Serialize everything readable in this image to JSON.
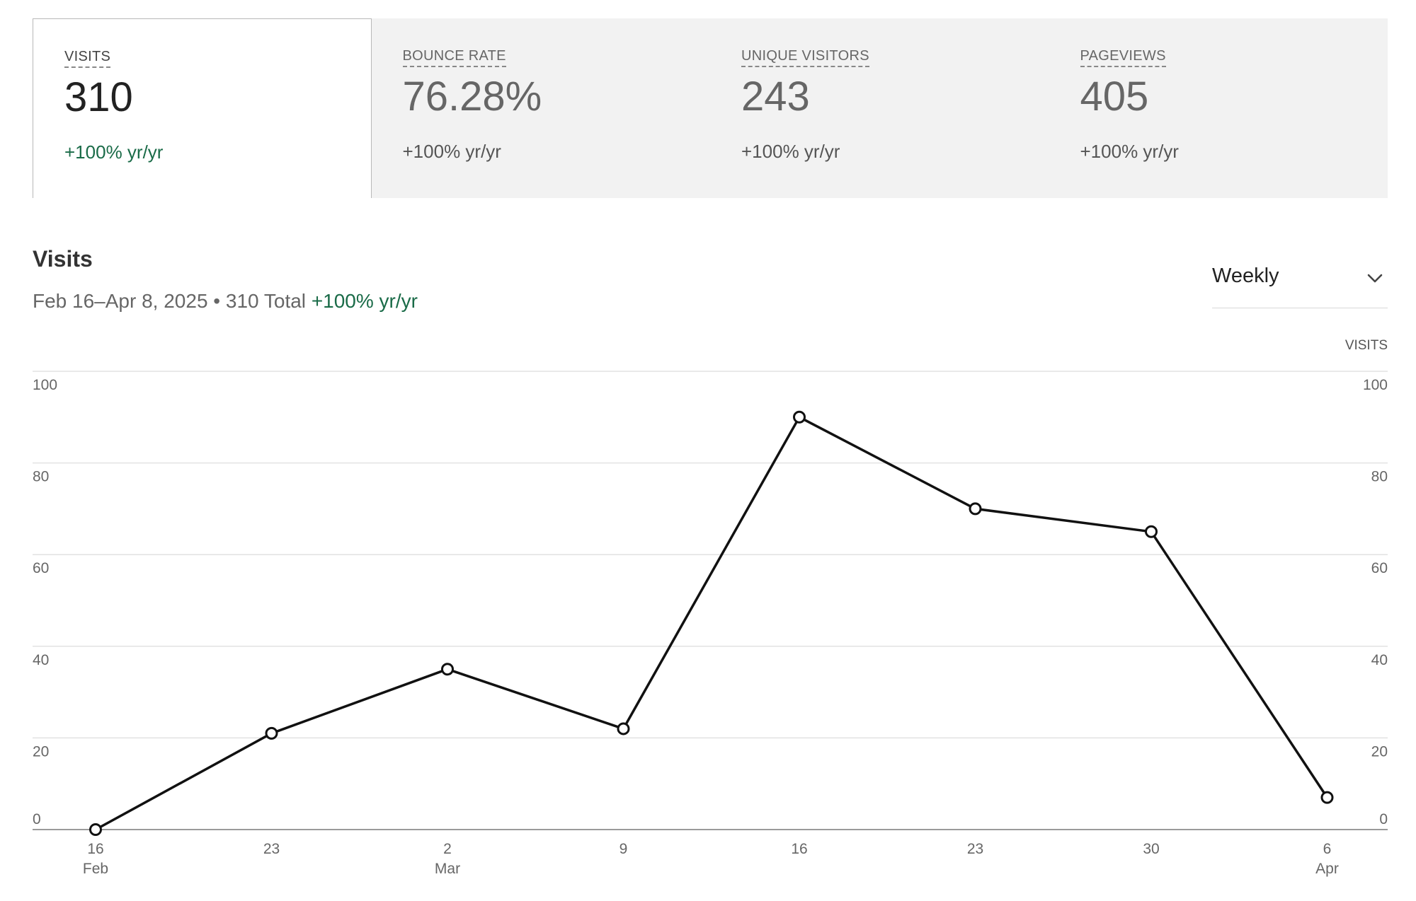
{
  "metrics": [
    {
      "label": "VISITS",
      "value": "310",
      "change": "+100% yr/yr",
      "active": true
    },
    {
      "label": "BOUNCE RATE",
      "value": "76.28%",
      "change": "+100% yr/yr",
      "active": false
    },
    {
      "label": "UNIQUE VISITORS",
      "value": "243",
      "change": "+100% yr/yr",
      "active": false
    },
    {
      "label": "PAGEVIEWS",
      "value": "405",
      "change": "+100% yr/yr",
      "active": false
    }
  ],
  "section": {
    "title": "Visits",
    "date_range": "Feb 16–Apr 8, 2025",
    "separator": "•",
    "total": "310 Total",
    "change": "+100% yr/yr"
  },
  "period_select": {
    "value": "Weekly",
    "icon": "chevron-down-icon"
  },
  "chart_data": {
    "type": "line",
    "ylabel": "VISITS",
    "ylim": [
      0,
      100
    ],
    "yticks": [
      0,
      20,
      40,
      60,
      80,
      100
    ],
    "x": [
      "16 Feb",
      "23 Feb",
      "2 Mar",
      "9 Mar",
      "16 Mar",
      "23 Mar",
      "30 Mar",
      "6 Apr"
    ],
    "tick_labels": [
      {
        "day": "16",
        "month": "Feb"
      },
      {
        "day": "23",
        "month": ""
      },
      {
        "day": "2",
        "month": "Mar"
      },
      {
        "day": "9",
        "month": ""
      },
      {
        "day": "16",
        "month": ""
      },
      {
        "day": "23",
        "month": ""
      },
      {
        "day": "30",
        "month": ""
      },
      {
        "day": "6",
        "month": "Apr"
      }
    ],
    "series": [
      {
        "values": [
          0,
          21,
          35,
          22,
          90,
          70,
          65,
          7
        ]
      }
    ],
    "grid": true,
    "colors": {
      "line": "#111111",
      "marker_fill": "#ffffff",
      "grid": "#e2e2e2",
      "axis": "#9a9a9a",
      "tick_text": "#666666"
    }
  }
}
